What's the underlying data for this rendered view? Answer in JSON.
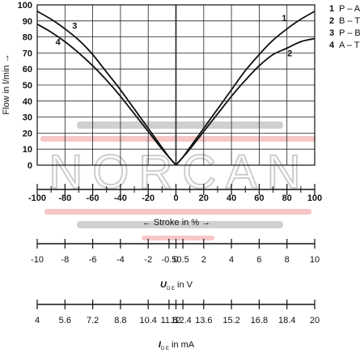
{
  "watermark": {
    "text": "NORCAN",
    "band_color": "#f4b9b9",
    "bar_color": "#c8c8c8",
    "text_color": "#bdbdbd"
  },
  "chart_data": {
    "type": "line",
    "ylabel": "Flow in l/min →",
    "xlabel": "← Stroke in % →",
    "xlim": [
      -100,
      100
    ],
    "ylim": [
      0,
      100
    ],
    "x_ticks": [
      -100,
      -80,
      -60,
      -40,
      -20,
      0,
      20,
      40,
      60,
      80,
      100
    ],
    "y_ticks": [
      0,
      10,
      20,
      30,
      40,
      50,
      60,
      70,
      80,
      90,
      100
    ],
    "grid": true,
    "legend_position": "top-right",
    "legend": [
      {
        "num": "1",
        "label": "P – A"
      },
      {
        "num": "2",
        "label": "B – T"
      },
      {
        "num": "3",
        "label": "P – B"
      },
      {
        "num": "4",
        "label": "A – T"
      }
    ],
    "series": [
      {
        "name": "1",
        "label": "P – A",
        "x": [
          0,
          5,
          10,
          20,
          30,
          40,
          50,
          60,
          70,
          80,
          90,
          100
        ],
        "y": [
          0,
          5,
          11,
          23,
          35,
          47,
          59,
          69,
          78,
          85,
          91,
          96
        ]
      },
      {
        "name": "2",
        "label": "B – T",
        "x": [
          0,
          5,
          10,
          20,
          30,
          40,
          50,
          60,
          70,
          80,
          90,
          100
        ],
        "y": [
          0,
          5,
          10,
          21,
          32,
          43,
          53,
          62,
          69,
          73,
          77,
          79
        ]
      },
      {
        "name": "3",
        "label": "P – B",
        "x": [
          0,
          -5,
          -10,
          -20,
          -30,
          -40,
          -50,
          -60,
          -70,
          -80,
          -90,
          -100
        ],
        "y": [
          0,
          5,
          11,
          23,
          35,
          47,
          58,
          69,
          78,
          85,
          91,
          96
        ]
      },
      {
        "name": "4",
        "label": "A – T",
        "x": [
          0,
          -5,
          -10,
          -20,
          -30,
          -40,
          -50,
          -60,
          -70,
          -80,
          -90,
          -100
        ],
        "y": [
          0,
          5,
          10,
          21,
          32,
          43,
          53,
          62,
          70,
          77,
          83,
          88
        ]
      }
    ],
    "secondary_axes": [
      {
        "label_main": "U",
        "label_sub": "D E",
        "label_unit": " in V",
        "ticks": [
          "-10",
          "-8",
          "-6",
          "-4",
          "-2",
          "-0.5",
          "0",
          "0.5",
          "2",
          "4",
          "6",
          "8",
          "10"
        ],
        "positions": [
          -10,
          -8,
          -6,
          -4,
          -2,
          -0.5,
          0,
          0.5,
          2,
          4,
          6,
          8,
          10
        ],
        "range": [
          -10,
          10
        ]
      },
      {
        "label_main": "I",
        "label_sub": "D E",
        "label_unit": " in mA",
        "ticks": [
          "4",
          "5.6",
          "7.2",
          "8.8",
          "10.4",
          "11.6",
          "12",
          "12.4",
          "13.6",
          "15.2",
          "16.8",
          "18.4",
          "20"
        ],
        "positions": [
          4,
          5.6,
          7.2,
          8.8,
          10.4,
          11.6,
          12,
          12.4,
          13.6,
          15.2,
          16.8,
          18.4,
          20
        ],
        "range": [
          4,
          20
        ]
      }
    ]
  }
}
